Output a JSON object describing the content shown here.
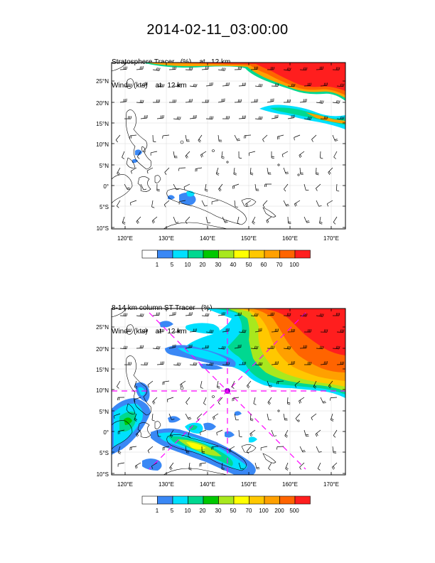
{
  "title": "2014-02-11_03:00:00",
  "panels": [
    {
      "title_lines": [
        "Stratosphere Tracer   (%)    at   12 km",
        "Wind   (kts)    at   12 km"
      ],
      "lon_ticks": [
        "120°E",
        "130°E",
        "140°E",
        "150°E",
        "160°E",
        "170°E"
      ],
      "lat_ticks": [
        "25°N",
        "20°N",
        "15°N",
        "10°N",
        "5°N",
        "0°",
        "5°S",
        "10°S"
      ],
      "colorbar": {
        "colors": [
          "#ffffff",
          "#3a88f5",
          "#00e0ff",
          "#00d890",
          "#00c800",
          "#a8e81e",
          "#ffff00",
          "#ffc800",
          "#ffa000",
          "#ff6400",
          "#ff1e1e"
        ],
        "labels": [
          "1",
          "5",
          "10",
          "20",
          "30",
          "40",
          "50",
          "60",
          "70",
          "100"
        ]
      }
    },
    {
      "title_lines": [
        "8-14 km column ST Tracer   (%)",
        "Wind   (kts)    at   12 km"
      ],
      "lon_ticks": [
        "120°E",
        "130°E",
        "140°E",
        "150°E",
        "160°E",
        "170°E"
      ],
      "lat_ticks": [
        "25°N",
        "20°N",
        "15°N",
        "10°N",
        "5°N",
        "0°",
        "5°S",
        "10°S"
      ],
      "colorbar": {
        "colors": [
          "#ffffff",
          "#3a88f5",
          "#00e0ff",
          "#00d890",
          "#00c800",
          "#a8e81e",
          "#ffff00",
          "#ffc800",
          "#ffa000",
          "#ff6400",
          "#ff1e1e"
        ],
        "labels": [
          "1",
          "5",
          "10",
          "20",
          "30",
          "50",
          "70",
          "100",
          "200",
          "500"
        ]
      },
      "marker_color": "#ff00ff"
    }
  ]
}
